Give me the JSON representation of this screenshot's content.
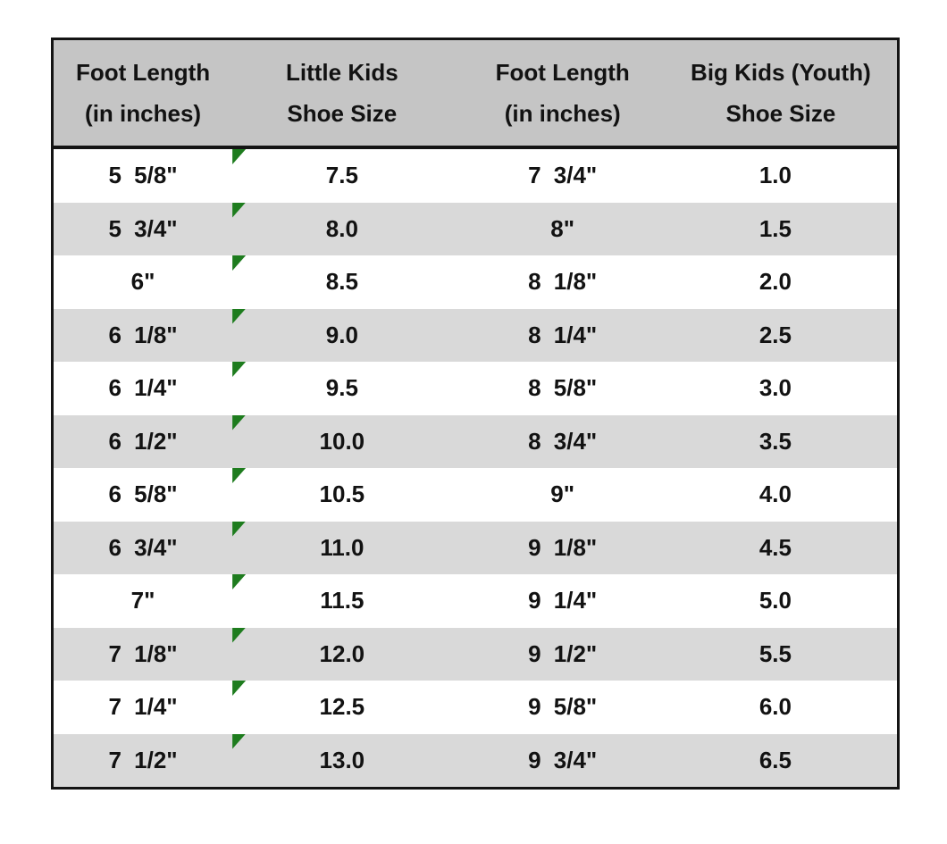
{
  "table": {
    "headers": [
      {
        "line1": "Foot Length",
        "line2": "(in inches)"
      },
      {
        "line1": "Little Kids",
        "line2": "Shoe Size"
      },
      {
        "line1": "Foot Length",
        "line2": "(in inches)"
      },
      {
        "line1": "Big Kids (Youth)",
        "line2": "Shoe Size"
      }
    ]
  },
  "chart_data": {
    "type": "table",
    "columns": [
      "Foot Length (in inches)",
      "Little Kids Shoe Size",
      "Foot Length (in inches)",
      "Big Kids (Youth) Shoe Size"
    ],
    "rows": [
      [
        "5 5/8\"",
        "7.5",
        "7 3/4\"",
        "1.0"
      ],
      [
        "5 3/4\"",
        "8.0",
        "8\"",
        "1.5"
      ],
      [
        "6\"",
        "8.5",
        "8 1/8\"",
        "2.0"
      ],
      [
        "6 1/8\"",
        "9.0",
        "8 1/4\"",
        "2.5"
      ],
      [
        "6 1/4\"",
        "9.5",
        "8 5/8\"",
        "3.0"
      ],
      [
        "6 1/2\"",
        "10.0",
        "8 3/4\"",
        "3.5"
      ],
      [
        "6 5/8\"",
        "10.5",
        "9\"",
        "4.0"
      ],
      [
        "6 3/4\"",
        "11.0",
        "9 1/8\"",
        "4.5"
      ],
      [
        "7\"",
        "11.5",
        "9 1/4\"",
        "5.0"
      ],
      [
        "7 1/8\"",
        "12.0",
        "9 1/2\"",
        "5.5"
      ],
      [
        "7 1/4\"",
        "12.5",
        "9 5/8\"",
        "6.0"
      ],
      [
        "7 1/2\"",
        "13.0",
        "9 3/4\"",
        "6.5"
      ]
    ],
    "notes": "Every cell in the Little Kids Shoe Size column carries a green top-left corner flag triangle; rows alternate white and light gray starting with white."
  },
  "icons": {
    "error_flag": "green-corner-triangle-icon"
  },
  "colors": {
    "header-bg": "#C5C5C5",
    "row-alt-bg": "#D9D9D9",
    "border": "#141414",
    "flag-green": "#1E7C1E",
    "text": "#121212"
  }
}
